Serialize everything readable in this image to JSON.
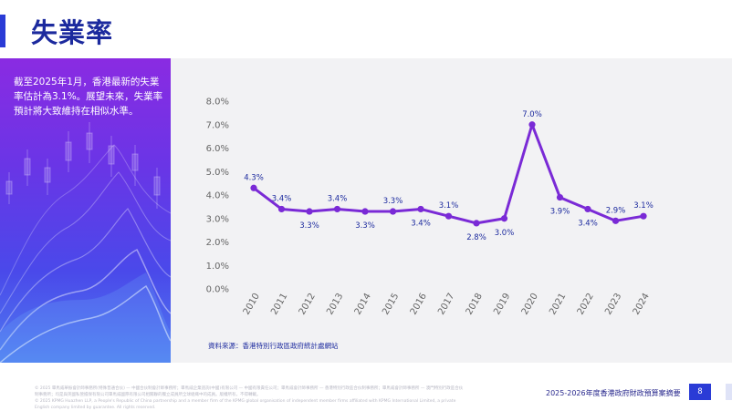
{
  "header": {
    "title": "失業率"
  },
  "panel": {
    "text": "截至2025年1月，香港最新的失業率估計為3.1%。展望未來，失業率預計將大致維持在相似水準。"
  },
  "source": "資料來源：香港特別行政區政府統計處網站",
  "footer": {
    "disclaimer_1": "© 2025 畢馬威華振會計師事務所(特殊普通合伙) — 中國合伙制會計師事務所；畢馬威企業諮詢(中國)有限公司 — 中國有限責任公司；畢馬威會計師事務所 — 香港特別行政區合伙制事務所；畢馬威會計師事務所 — 澳門特別行政區合伙制事務所；均是與英國私營擔保有限公司畢馬威國際有限公司相關聯的獨立成員所全球組織中的成員。版權所有，不得轉載。",
    "disclaimer_2": "© 2025 KPMG Huazhen LLP, a People's Republic of China partnership and a member firm of the KPMG global organisation of independent member firms affiliated with KPMG International Limited, a private English company limited by guarantee. All rights reserved.",
    "report_name": "2025-2026年度香港政府財政預算案摘要",
    "page_number": "8"
  },
  "colors": {
    "accent": "#2a3bd6",
    "line": "#7a2ad6",
    "label": "#1c2a9e"
  },
  "chart_data": {
    "type": "line",
    "title": "",
    "xlabel": "",
    "ylabel": "",
    "categories": [
      "2010",
      "2011",
      "2012",
      "2013",
      "2014",
      "2015",
      "2016",
      "2017",
      "2018",
      "2019",
      "2020",
      "2021",
      "2022",
      "2023",
      "2024"
    ],
    "series": [
      {
        "name": "",
        "values": [
          4.3,
          3.4,
          3.3,
          3.4,
          3.3,
          3.3,
          3.4,
          3.1,
          2.8,
          3.0,
          7.0,
          3.9,
          3.4,
          2.9,
          3.1
        ]
      }
    ],
    "data_labels": [
      "4.3%",
      "3.4%",
      "3.3%",
      "3.4%",
      "3.3%",
      "3.3%",
      "3.4%",
      "3.1%",
      "2.8%",
      "3.0%",
      "7.0%",
      "3.9%",
      "3.4%",
      "2.9%",
      "3.1%"
    ],
    "label_positions": [
      "above",
      "above",
      "below",
      "above",
      "below",
      "above",
      "below",
      "above",
      "below",
      "below",
      "above",
      "below",
      "below",
      "above",
      "above"
    ],
    "yticks": [
      "0.0%",
      "1.0%",
      "2.0%",
      "3.0%",
      "4.0%",
      "5.0%",
      "6.0%",
      "7.0%",
      "8.0%"
    ],
    "ylim": [
      0,
      8
    ],
    "grid": false,
    "legend": "none"
  }
}
